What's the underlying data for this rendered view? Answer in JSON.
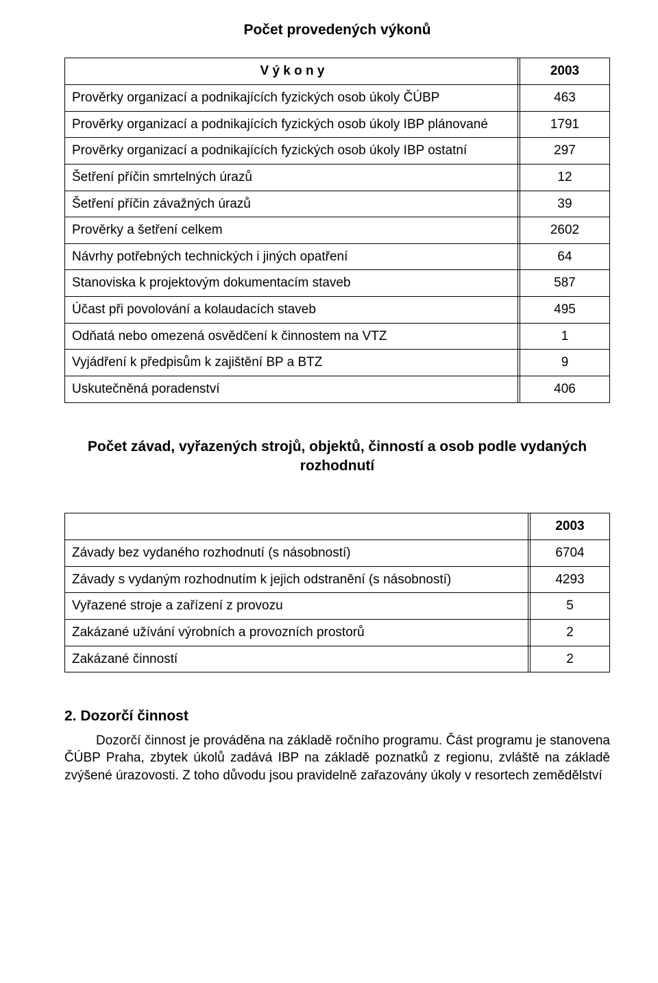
{
  "doc": {
    "title1": "Počet provedených výkonů",
    "table1": {
      "header_label": "V ý k o n y",
      "header_value": "2003",
      "rows": [
        {
          "label": "Prověrky organizací a podnikajících fyzických osob úkoly ČÚBP",
          "value": "463"
        },
        {
          "label": "Prověrky organizací a podnikajících fyzických osob úkoly IBP plánované",
          "value": "1791"
        },
        {
          "label": "Prověrky organizací a podnikajících fyzických osob úkoly IBP ostatní",
          "value": "297"
        },
        {
          "label": "Šetření příčin smrtelných úrazů",
          "value": "12"
        },
        {
          "label": "Šetření příčin závažných úrazů",
          "value": "39"
        },
        {
          "label": "Prověrky a šetření celkem",
          "value": "2602"
        },
        {
          "label": "Návrhy potřebných technických i jiných opatření",
          "value": "64"
        },
        {
          "label": "Stanoviska k projektovým dokumentacím staveb",
          "value": "587"
        },
        {
          "label": "Účast při povolování a kolaudacích staveb",
          "value": "495"
        },
        {
          "label": "Odňatá nebo omezená osvědčení k činnostem na VTZ",
          "value": "1"
        },
        {
          "label": "Vyjádření k předpisům k zajištění BP a BTZ",
          "value": "9"
        },
        {
          "label": "Uskutečněná poradenství",
          "value": "406"
        }
      ]
    },
    "title2": "Počet závad, vyřazených strojů, objektů, činností a osob podle vydaných rozhodnutí",
    "table2": {
      "header_value": "2003",
      "rows": [
        {
          "label": "Závady bez vydaného rozhodnutí (s násobností)",
          "value": "6704"
        },
        {
          "label": "Závady s vydaným rozhodnutím k jejich odstranění (s násobností)",
          "value": "4293"
        },
        {
          "label": "Vyřazené stroje a zařízení z provozu",
          "value": "5"
        },
        {
          "label": "Zakázané užívání výrobních a provozních prostorů",
          "value": "2"
        },
        {
          "label": "Zakázané činností",
          "value": "2"
        }
      ]
    },
    "section_heading": "2. Dozorčí činnost",
    "paragraph": "Dozorčí činnost je prováděna na základě ročního programu. Část programu je stanovena ČÚBP Praha, zbytek úkolů zadává IBP na základě poznatků z regionu, zvláště na základě zvýšené úrazovosti. Z toho důvodu jsou pravidelně zařazovány úkoly v resortech zemědělství"
  }
}
